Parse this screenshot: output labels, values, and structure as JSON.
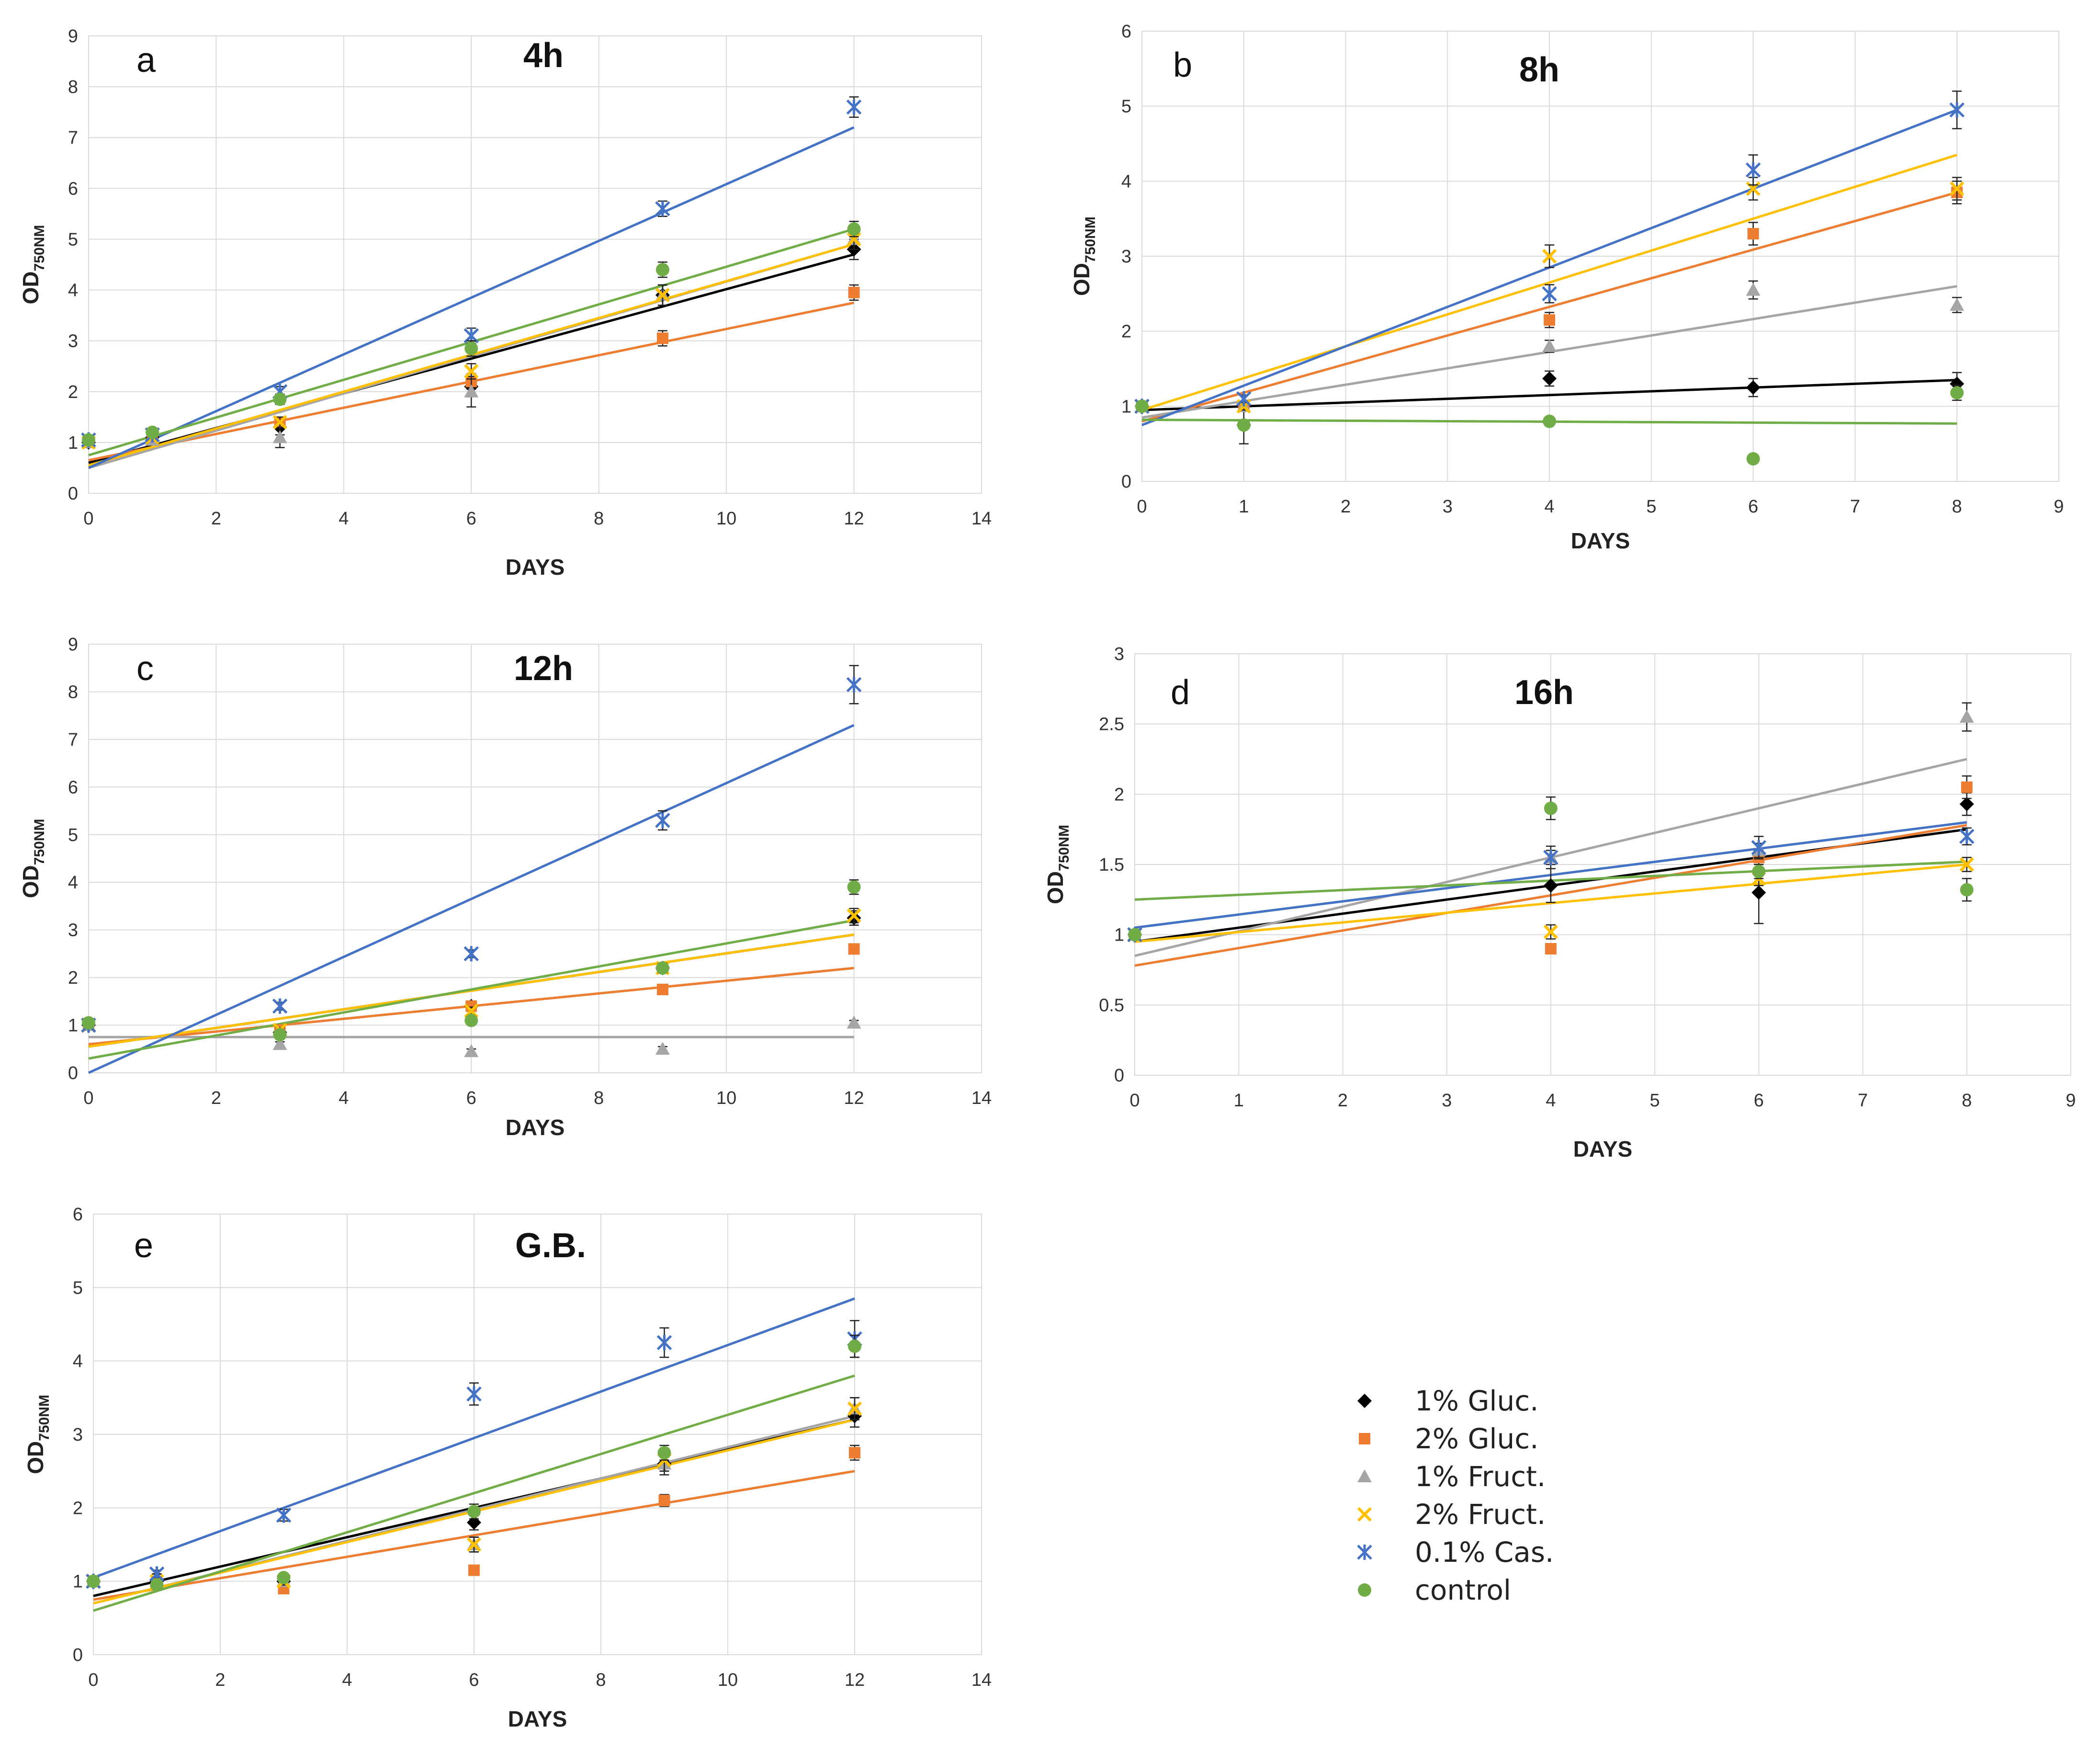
{
  "colors": {
    "1% Gluc.": "#000000",
    "2% Gluc.": "#ED7D31",
    "1% Fruct.": "#A5A5A5",
    "2% Fruct.": "#FFC000",
    "0.1% Cas.": "#4472C4",
    "control": "#70AD47"
  },
  "legend": {
    "items": [
      {
        "label": "1%  Gluc.",
        "series": "1% Gluc.",
        "marker": "diamond"
      },
      {
        "label": "2% Gluc.",
        "series": "2% Gluc.",
        "marker": "square"
      },
      {
        "label": "1% Fruct.",
        "series": "1% Fruct.",
        "marker": "triangle"
      },
      {
        "label": "2% Fruct.",
        "series": "2% Fruct.",
        "marker": "x"
      },
      {
        "label": "0.1% Cas.",
        "series": "0.1% Cas.",
        "marker": "star"
      },
      {
        "label": "control",
        "series": "control",
        "marker": "circle"
      }
    ]
  },
  "chart_data": [
    {
      "id": "a",
      "type": "scatter",
      "panel_label": "a",
      "title": "4h",
      "xlabel": "DAYS",
      "ylabel_main": "OD",
      "ylabel_sub": "750NM",
      "xlim": [
        0,
        14
      ],
      "xticks": [
        0,
        2,
        4,
        6,
        8,
        10,
        12,
        14
      ],
      "ylim": [
        0,
        9
      ],
      "yticks": [
        "0",
        "1",
        "2",
        "3",
        "4",
        "5",
        "6",
        "7",
        "8",
        "9"
      ],
      "series": [
        {
          "name": "1% Gluc.",
          "marker": "diamond",
          "x": [
            0,
            1,
            3,
            6,
            9,
            12
          ],
          "y": [
            1.0,
            1.1,
            1.3,
            2.1,
            3.9,
            4.8
          ],
          "err": [
            0.05,
            0.05,
            0.15,
            0.2,
            0.2,
            0.2
          ],
          "trend": [
            0.6,
            4.7
          ]
        },
        {
          "name": "2% Gluc.",
          "marker": "square",
          "x": [
            0,
            1,
            3,
            6,
            9,
            12
          ],
          "y": [
            1.0,
            1.1,
            1.4,
            2.2,
            3.05,
            3.95
          ],
          "err": [
            0.05,
            0.05,
            0.1,
            0.15,
            0.15,
            0.15
          ],
          "trend": [
            0.65,
            3.75
          ]
        },
        {
          "name": "1% Fruct.",
          "marker": "triangle",
          "x": [
            0,
            1,
            3,
            6,
            9,
            12
          ],
          "y": [
            1.0,
            1.05,
            1.1,
            2.0,
            3.9,
            5.0
          ],
          "err": [
            0.05,
            0.05,
            0.2,
            0.3,
            0.2,
            0.2
          ],
          "trend": [
            0.5,
            4.9
          ]
        },
        {
          "name": "2% Fruct.",
          "marker": "x",
          "x": [
            0,
            1,
            3,
            6,
            9,
            12
          ],
          "y": [
            1.0,
            1.1,
            1.4,
            2.4,
            3.9,
            5.0
          ],
          "err": [
            0.05,
            0.05,
            0.1,
            0.15,
            0.2,
            0.2
          ],
          "trend": [
            0.55,
            4.9
          ]
        },
        {
          "name": "0.1% Cas.",
          "marker": "star",
          "x": [
            0,
            1,
            3,
            6,
            9,
            12
          ],
          "y": [
            1.05,
            1.15,
            2.0,
            3.1,
            5.6,
            7.6
          ],
          "err": [
            0.05,
            0.05,
            0.1,
            0.15,
            0.15,
            0.2
          ],
          "trend": [
            0.5,
            7.2
          ]
        },
        {
          "name": "control",
          "marker": "circle",
          "x": [
            0,
            1,
            3,
            6,
            9,
            12
          ],
          "y": [
            1.05,
            1.2,
            1.85,
            2.85,
            4.4,
            5.2
          ],
          "err": [
            0.05,
            0.05,
            0.1,
            0.15,
            0.15,
            0.15
          ],
          "trend": [
            0.75,
            5.2
          ]
        }
      ]
    },
    {
      "id": "b",
      "type": "scatter",
      "panel_label": "b",
      "title": "8h",
      "xlabel": "DAYS",
      "ylabel_main": "OD",
      "ylabel_sub": "750NM",
      "xlim": [
        0,
        9
      ],
      "xticks": [
        0,
        1,
        2,
        3,
        4,
        5,
        6,
        7,
        8,
        9
      ],
      "ylim": [
        0,
        6
      ],
      "yticks": [
        "0",
        "1",
        "2",
        "3",
        "4",
        "5",
        "6"
      ],
      "series": [
        {
          "name": "1% Gluc.",
          "marker": "diamond",
          "x": [
            0,
            1,
            4,
            6,
            8
          ],
          "y": [
            1.0,
            0.75,
            1.37,
            1.25,
            1.3
          ],
          "err": [
            0.05,
            0.25,
            0.1,
            0.12,
            0.15
          ],
          "trend": [
            0.95,
            1.35
          ]
        },
        {
          "name": "2% Gluc.",
          "marker": "square",
          "x": [
            0,
            1,
            4,
            6,
            8
          ],
          "y": [
            1.0,
            1.0,
            2.15,
            3.3,
            3.85
          ],
          "err": [
            0.05,
            0.05,
            0.1,
            0.15,
            0.15
          ],
          "trend": [
            0.8,
            3.85
          ]
        },
        {
          "name": "1% Fruct.",
          "marker": "triangle",
          "x": [
            0,
            1,
            4,
            6,
            8
          ],
          "y": [
            1.0,
            1.0,
            1.8,
            2.55,
            2.35
          ],
          "err": [
            0.05,
            0.05,
            0.08,
            0.12,
            0.1
          ],
          "trend": [
            0.85,
            2.6
          ]
        },
        {
          "name": "2% Fruct.",
          "marker": "x",
          "x": [
            0,
            1,
            4,
            6,
            8
          ],
          "y": [
            1.0,
            1.0,
            3.0,
            3.9,
            3.9
          ],
          "err": [
            0.05,
            0.05,
            0.15,
            0.15,
            0.15
          ],
          "trend": [
            0.95,
            4.35
          ]
        },
        {
          "name": "0.1% Cas.",
          "marker": "star",
          "x": [
            0,
            1,
            4,
            6,
            8
          ],
          "y": [
            1.0,
            1.1,
            2.5,
            4.15,
            4.95
          ],
          "err": [
            0.05,
            0.05,
            0.12,
            0.2,
            0.25
          ],
          "trend": [
            0.75,
            4.95
          ]
        },
        {
          "name": "control",
          "marker": "circle",
          "x": [
            0,
            1,
            4,
            6,
            8
          ],
          "y": [
            1.0,
            0.75,
            0.8,
            0.3,
            1.18
          ],
          "err": [
            0.05,
            0.05,
            0.03,
            0.02,
            0.1
          ],
          "trend": [
            0.82,
            0.77
          ]
        }
      ]
    },
    {
      "id": "c",
      "type": "scatter",
      "panel_label": "c",
      "title": "12h",
      "xlabel": "DAYS",
      "ylabel_main": "OD",
      "ylabel_sub": "750NM",
      "xlim": [
        0,
        14
      ],
      "xticks": [
        0,
        2,
        4,
        6,
        8,
        10,
        12,
        14
      ],
      "ylim": [
        0,
        9
      ],
      "yticks": [
        "0",
        "1",
        "2",
        "3",
        "4",
        "5",
        "6",
        "7",
        "8",
        "9"
      ],
      "series": [
        {
          "name": "1% Gluc.",
          "marker": "diamond",
          "x": [
            0,
            3,
            6,
            9,
            12
          ],
          "y": [
            1.0,
            0.85,
            1.4,
            2.2,
            3.25
          ],
          "err": [
            0.05,
            0.05,
            0.1,
            0.1,
            0.15
          ],
          "trend": [
            0.55,
            2.9
          ]
        },
        {
          "name": "2% Gluc.",
          "marker": "square",
          "x": [
            0,
            3,
            6,
            9,
            12
          ],
          "y": [
            1.0,
            0.9,
            1.4,
            1.75,
            2.6
          ],
          "err": [
            0.05,
            0.05,
            0.08,
            0.08,
            0.1
          ],
          "trend": [
            0.6,
            2.2
          ]
        },
        {
          "name": "1% Fruct.",
          "marker": "triangle",
          "x": [
            0,
            3,
            6,
            9,
            12
          ],
          "y": [
            1.0,
            0.6,
            0.45,
            0.5,
            1.05
          ],
          "err": [
            0.05,
            0.05,
            0.05,
            0.05,
            0.05
          ],
          "trend": [
            0.75,
            0.75
          ]
        },
        {
          "name": "2% Fruct.",
          "marker": "x",
          "x": [
            0,
            3,
            6,
            9,
            12
          ],
          "y": [
            1.0,
            0.9,
            1.3,
            2.2,
            3.3
          ],
          "err": [
            0.05,
            0.05,
            0.08,
            0.1,
            0.15
          ],
          "trend": [
            0.55,
            2.9
          ]
        },
        {
          "name": "0.1% Cas.",
          "marker": "star",
          "x": [
            0,
            3,
            6,
            9,
            12
          ],
          "y": [
            1.0,
            1.4,
            2.5,
            5.3,
            8.15
          ],
          "err": [
            0.05,
            0.08,
            0.08,
            0.2,
            0.4
          ],
          "trend": [
            0.0,
            7.3
          ]
        },
        {
          "name": "control",
          "marker": "circle",
          "x": [
            0,
            3,
            6,
            9,
            12
          ],
          "y": [
            1.05,
            0.8,
            1.1,
            2.2,
            3.9
          ],
          "err": [
            0.05,
            0.05,
            0.08,
            0.1,
            0.15
          ],
          "trend": [
            0.3,
            3.2
          ]
        }
      ]
    },
    {
      "id": "d",
      "type": "scatter",
      "panel_label": "d",
      "title": "16h",
      "xlabel": "DAYS",
      "ylabel_main": "OD",
      "ylabel_sub": "750NM",
      "xlim": [
        0,
        9
      ],
      "xticks": [
        0,
        1,
        2,
        3,
        4,
        5,
        6,
        7,
        8,
        9
      ],
      "ylim": [
        0,
        3
      ],
      "yticks": [
        "0",
        "0.5",
        "1",
        "1.5",
        "2",
        "2.5",
        "3"
      ],
      "series": [
        {
          "name": "1% Gluc.",
          "marker": "diamond",
          "x": [
            0,
            4,
            6,
            8
          ],
          "y": [
            1.0,
            1.35,
            1.3,
            1.93
          ],
          "err": [
            0.03,
            0.12,
            0.22,
            0.08
          ],
          "trend": [
            0.95,
            1.75
          ]
        },
        {
          "name": "2% Gluc.",
          "marker": "square",
          "x": [
            0,
            4,
            6,
            8
          ],
          "y": [
            1.0,
            0.9,
            1.55,
            2.05
          ],
          "err": [
            0.03,
            0.03,
            0.05,
            0.08
          ],
          "trend": [
            0.78,
            1.78
          ]
        },
        {
          "name": "1% Fruct.",
          "marker": "triangle",
          "x": [
            0,
            4,
            6,
            8
          ],
          "y": [
            1.0,
            1.55,
            1.6,
            2.55
          ],
          "err": [
            0.03,
            0.05,
            0.05,
            0.1
          ],
          "trend": [
            0.85,
            2.25
          ]
        },
        {
          "name": "2% Fruct.",
          "marker": "x",
          "x": [
            0,
            4,
            6,
            8
          ],
          "y": [
            1.0,
            1.02,
            1.4,
            1.5
          ],
          "err": [
            0.03,
            0.05,
            0.05,
            0.05
          ],
          "trend": [
            0.95,
            1.5
          ]
        },
        {
          "name": "0.1% Cas.",
          "marker": "star",
          "x": [
            0,
            4,
            6,
            8
          ],
          "y": [
            1.0,
            1.55,
            1.62,
            1.7
          ],
          "err": [
            0.03,
            0.08,
            0.08,
            0.06
          ],
          "trend": [
            1.05,
            1.8
          ]
        },
        {
          "name": "control",
          "marker": "circle",
          "x": [
            0,
            4,
            6,
            8
          ],
          "y": [
            1.0,
            1.9,
            1.45,
            1.32
          ],
          "err": [
            0.03,
            0.08,
            0.05,
            0.08
          ],
          "trend": [
            1.25,
            1.52
          ]
        }
      ]
    },
    {
      "id": "e",
      "type": "scatter",
      "panel_label": "e",
      "title": "G.B.",
      "xlabel": "DAYS",
      "ylabel_main": "OD",
      "ylabel_sub": "750NM",
      "xlim": [
        0,
        14
      ],
      "xticks": [
        0,
        2,
        4,
        6,
        8,
        10,
        12,
        14
      ],
      "ylim": [
        0,
        6
      ],
      "yticks": [
        "0",
        "1",
        "2",
        "3",
        "4",
        "5",
        "6"
      ],
      "series": [
        {
          "name": "1% Gluc.",
          "marker": "diamond",
          "x": [
            0,
            1,
            3,
            6,
            9,
            12
          ],
          "y": [
            1.0,
            1.0,
            1.0,
            1.8,
            2.6,
            3.25
          ],
          "err": [
            0.05,
            0.1,
            0.05,
            0.1,
            0.1,
            0.15
          ],
          "trend": [
            0.8,
            3.2
          ]
        },
        {
          "name": "2% Gluc.",
          "marker": "square",
          "x": [
            0,
            1,
            3,
            6,
            9,
            12
          ],
          "y": [
            1.0,
            1.0,
            0.9,
            1.15,
            2.1,
            2.75
          ],
          "err": [
            0.05,
            0.1,
            0.05,
            0.05,
            0.08,
            0.1
          ],
          "trend": [
            0.75,
            2.5
          ]
        },
        {
          "name": "1% Fruct.",
          "marker": "triangle",
          "x": [
            0,
            1,
            3,
            6,
            9,
            12
          ],
          "y": [
            1.0,
            1.0,
            1.0,
            1.5,
            2.6,
            3.35
          ],
          "err": [
            0.05,
            0.1,
            0.05,
            0.1,
            0.15,
            0.15
          ],
          "trend": [
            0.7,
            3.25
          ]
        },
        {
          "name": "2% Fruct.",
          "marker": "x",
          "x": [
            0,
            1,
            3,
            6,
            9,
            12
          ],
          "y": [
            1.0,
            1.0,
            1.0,
            1.5,
            2.65,
            3.35
          ],
          "err": [
            0.05,
            0.1,
            0.05,
            0.1,
            0.15,
            0.15
          ],
          "trend": [
            0.7,
            3.2
          ]
        },
        {
          "name": "0.1% Cas.",
          "marker": "star",
          "x": [
            0,
            1,
            3,
            6,
            9,
            12
          ],
          "y": [
            1.0,
            1.1,
            1.9,
            3.55,
            4.25,
            4.3
          ],
          "err": [
            0.05,
            0.05,
            0.08,
            0.15,
            0.2,
            0.25
          ],
          "trend": [
            1.05,
            4.85
          ]
        },
        {
          "name": "control",
          "marker": "circle",
          "x": [
            0,
            1,
            3,
            6,
            9,
            12
          ],
          "y": [
            1.0,
            0.95,
            1.05,
            1.95,
            2.75,
            4.2
          ],
          "err": [
            0.05,
            0.05,
            0.05,
            0.1,
            0.1,
            0.15
          ],
          "trend": [
            0.6,
            3.8
          ]
        }
      ]
    }
  ]
}
